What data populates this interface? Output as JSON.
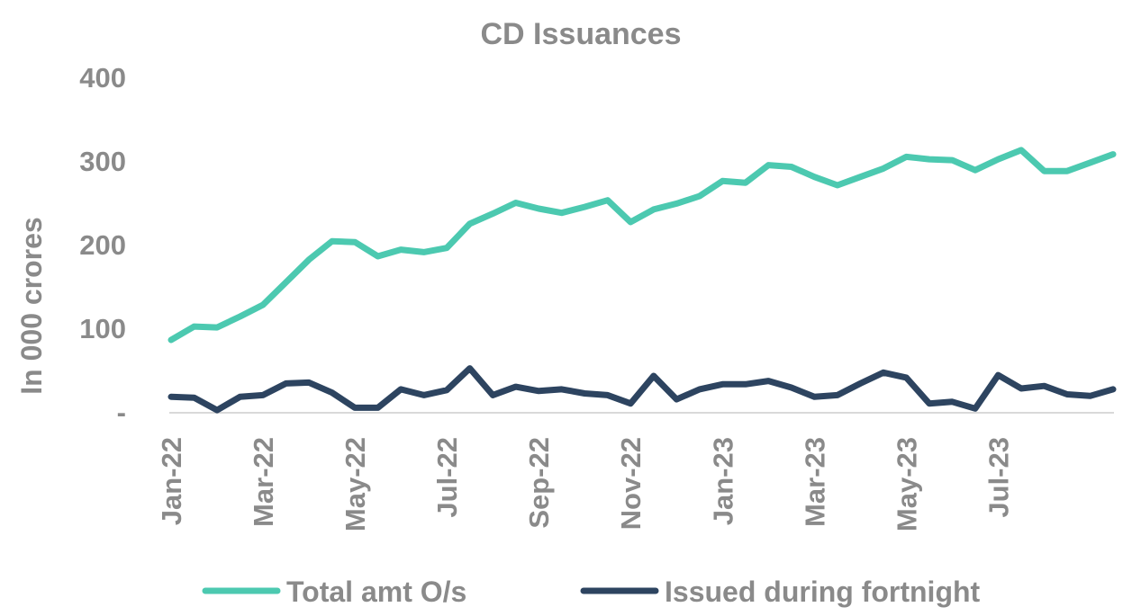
{
  "chart_data": {
    "type": "line",
    "title": "CD Issuances",
    "ylabel": "In 000 crores",
    "xlabel": "",
    "ylim": [
      0,
      400
    ],
    "yticks": [
      "-",
      "100",
      "200",
      "300",
      "400"
    ],
    "xticks": [
      "Jan-22",
      "Mar-22",
      "May-22",
      "Jul-22",
      "Sep-22",
      "Nov-22",
      "Jan-23",
      "Mar-23",
      "May-23",
      "Jul-23"
    ],
    "grid": false,
    "legend": "bottom",
    "series": [
      {
        "name": "Total amt O/s",
        "color": "#4cc9b0",
        "values": [
          86,
          102,
          101,
          114,
          128,
          155,
          182,
          204,
          203,
          186,
          194,
          191,
          196,
          225,
          237,
          250,
          243,
          238,
          245,
          253,
          227,
          242,
          249,
          258,
          276,
          274,
          295,
          293,
          281,
          271,
          281,
          291,
          305,
          302,
          301,
          289,
          302,
          313,
          288,
          288,
          298,
          308
        ]
      },
      {
        "name": "Issued during fortnight",
        "color": "#2d4460",
        "values": [
          18,
          17,
          2,
          18,
          20,
          34,
          35,
          23,
          5,
          5,
          27,
          20,
          26,
          52,
          20,
          30,
          25,
          27,
          22,
          20,
          10,
          43,
          15,
          27,
          33,
          33,
          37,
          29,
          18,
          20,
          34,
          47,
          41,
          10,
          12,
          4,
          44,
          28,
          31,
          21,
          19,
          27
        ]
      }
    ]
  }
}
